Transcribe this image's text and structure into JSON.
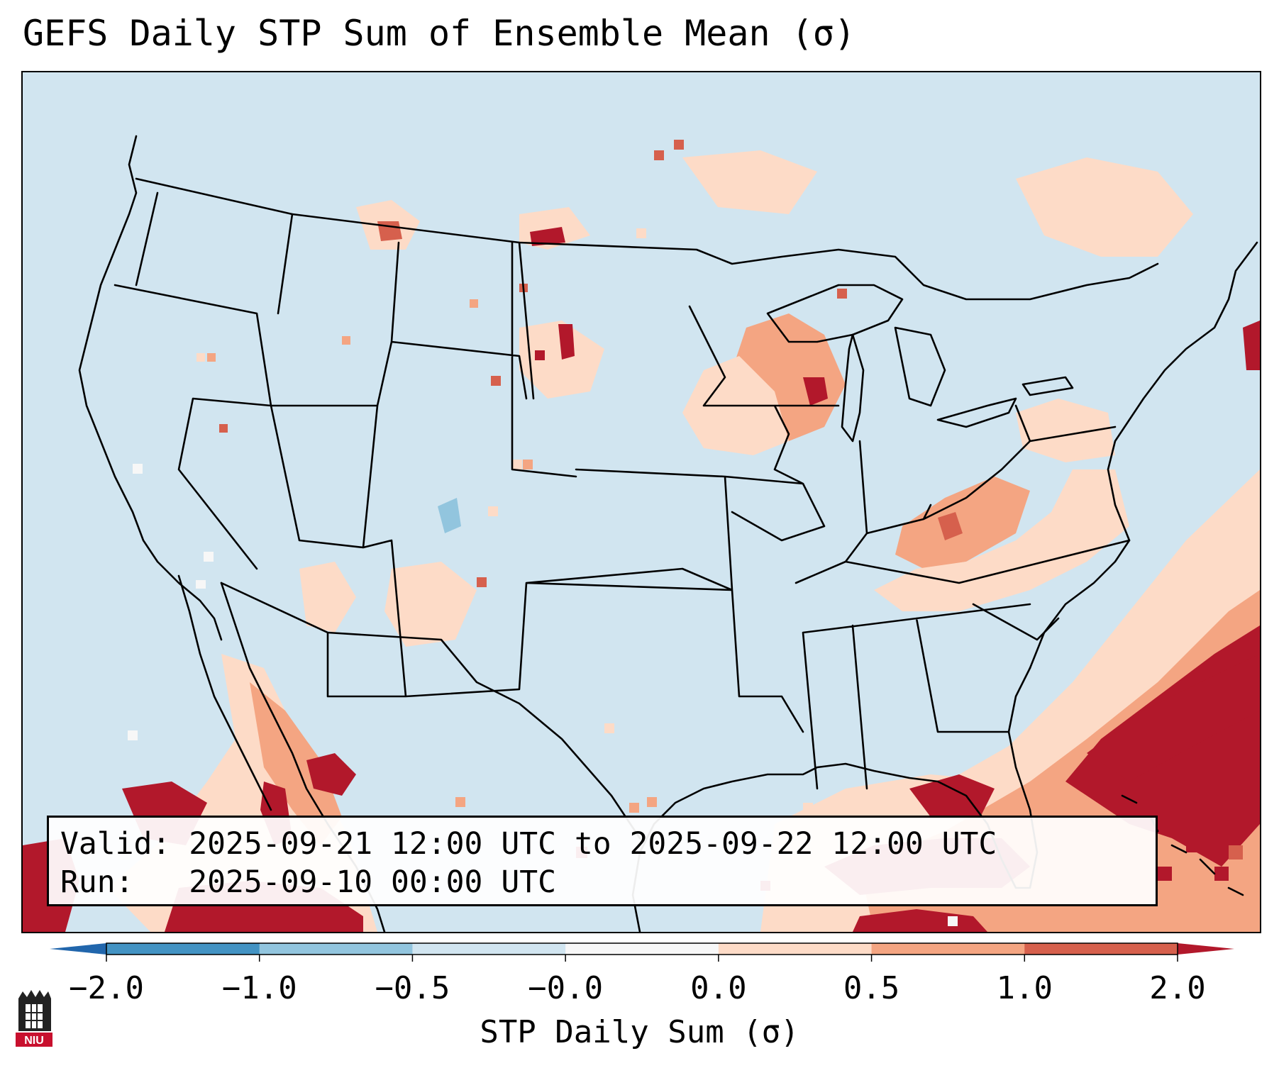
{
  "title": "GEFS Daily STP Sum of Ensemble Mean (σ)",
  "info": {
    "valid_line": "Valid: 2025-09-21 12:00 UTC to 2025-09-22 12:00 UTC",
    "run_line": "Run:   2025-09-10 00:00 UTC"
  },
  "colorbar": {
    "label": "STP Daily Sum (σ)",
    "extend": "both",
    "bins": [
      {
        "from": -2.0,
        "to": -1.0,
        "color": "#4393c3"
      },
      {
        "from": -1.0,
        "to": -0.5,
        "color": "#92c5de"
      },
      {
        "from": -0.5,
        "to": -0.0,
        "color": "#d1e5f0"
      },
      {
        "from": -0.0,
        "to": 0.0,
        "color": "#f7f7f7"
      },
      {
        "from": 0.0,
        "to": 0.5,
        "color": "#fddbc7"
      },
      {
        "from": 0.5,
        "to": 1.0,
        "color": "#f4a582"
      },
      {
        "from": 1.0,
        "to": 2.0,
        "color": "#d6604d"
      }
    ],
    "under_color": "#2166ac",
    "over_color": "#b2182b",
    "ticks": [
      "−2.0",
      "−1.0",
      "−0.5",
      "−0.0",
      "0.0",
      "0.5",
      "1.0",
      "2.0"
    ]
  },
  "map": {
    "background_color": "#d1e5f0",
    "border_color": "#000000",
    "region": "Continental United States",
    "hotspots": [
      {
        "region": "Gulf of Mexico / Florida / Bahamas / western Atlantic",
        "category": "> 2.0"
      },
      {
        "region": "Baja California / Gulf of California / NW Mexico",
        "category": "> 2.0"
      },
      {
        "region": "Ohio Valley / Appalachians",
        "category": "0.5 – 2.0"
      },
      {
        "region": "Upper Midwest / Wisconsin / Iowa",
        "category": "0.5 – 2.0"
      },
      {
        "region": "Northern Plains / Montana / Dakotas",
        "category": "0.0 – 2.0"
      },
      {
        "region": "Southern Ontario / Quebec / Northeast",
        "category": "0.0 – 0.5"
      },
      {
        "region": "Colorado",
        "category": "-1.0 – -0.5"
      }
    ]
  },
  "logo": {
    "text": "NIU"
  }
}
